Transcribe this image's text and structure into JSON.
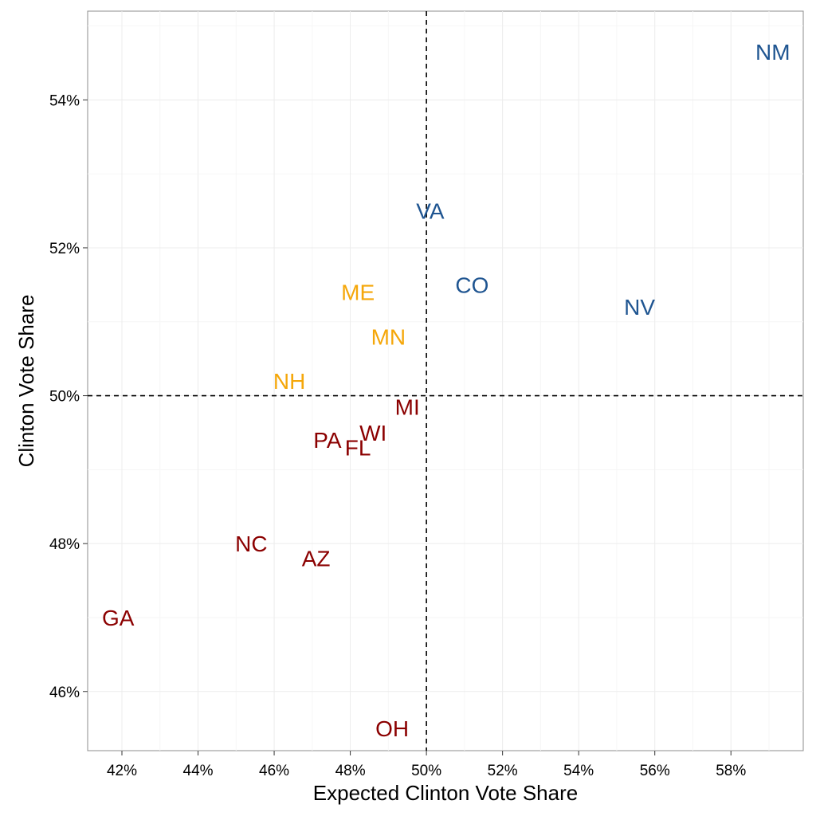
{
  "chart_data": {
    "type": "scatter",
    "xlabel": "Expected Clinton Vote Share",
    "ylabel": "Clinton Vote Share",
    "xlim": [
      41.1,
      59.9
    ],
    "ylim": [
      45.2,
      55.2
    ],
    "xticks": [
      42,
      44,
      46,
      48,
      50,
      52,
      54,
      56,
      58
    ],
    "xtick_labels": [
      "42%",
      "44%",
      "46%",
      "48%",
      "50%",
      "52%",
      "54%",
      "56%",
      "58%"
    ],
    "yticks": [
      46,
      48,
      50,
      52,
      54
    ],
    "ytick_labels": [
      "46%",
      "48%",
      "50%",
      "52%",
      "54%"
    ],
    "grid": true,
    "reference_lines": {
      "x": 50,
      "y": 50,
      "style": "dashed"
    },
    "colors": {
      "dem": "#1f5591",
      "swing": "#f5a70a",
      "rep": "#8b0000"
    },
    "points": [
      {
        "label": "NM",
        "x": 59.1,
        "y": 54.65,
        "group": "dem"
      },
      {
        "label": "VA",
        "x": 50.1,
        "y": 52.5,
        "group": "dem"
      },
      {
        "label": "CO",
        "x": 51.2,
        "y": 51.5,
        "group": "dem"
      },
      {
        "label": "NV",
        "x": 55.6,
        "y": 51.2,
        "group": "dem"
      },
      {
        "label": "ME",
        "x": 48.2,
        "y": 51.4,
        "group": "swing"
      },
      {
        "label": "MN",
        "x": 49.0,
        "y": 50.8,
        "group": "swing"
      },
      {
        "label": "NH",
        "x": 46.4,
        "y": 50.2,
        "group": "swing"
      },
      {
        "label": "MI",
        "x": 49.5,
        "y": 49.85,
        "group": "rep"
      },
      {
        "label": "WI",
        "x": 48.6,
        "y": 49.5,
        "group": "rep"
      },
      {
        "label": "PA",
        "x": 47.4,
        "y": 49.4,
        "group": "rep"
      },
      {
        "label": "FL",
        "x": 48.2,
        "y": 49.3,
        "group": "rep"
      },
      {
        "label": "NC",
        "x": 45.4,
        "y": 48.0,
        "group": "rep"
      },
      {
        "label": "AZ",
        "x": 47.1,
        "y": 47.8,
        "group": "rep"
      },
      {
        "label": "GA",
        "x": 41.9,
        "y": 47.0,
        "group": "rep"
      },
      {
        "label": "OH",
        "x": 49.1,
        "y": 45.5,
        "group": "rep"
      }
    ]
  }
}
